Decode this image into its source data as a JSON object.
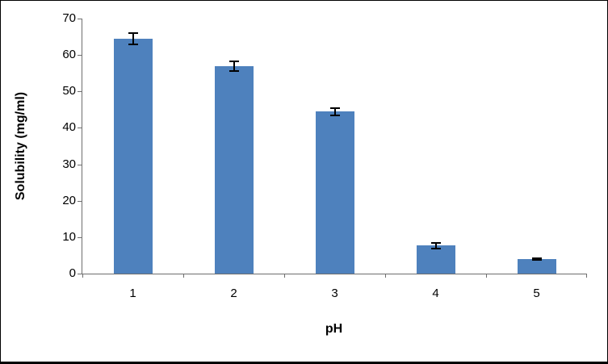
{
  "figure": {
    "background": "#ffffff",
    "border_color": "#000000"
  },
  "chart_data": {
    "type": "bar",
    "title": "",
    "xlabel": "pH",
    "ylabel": "Solubility (mg/ml)",
    "categories": [
      "1",
      "2",
      "3",
      "4",
      "5"
    ],
    "values": [
      64.5,
      57,
      44.5,
      7.7,
      4
    ],
    "errors": [
      1.5,
      1.3,
      1.0,
      0.8,
      0.3
    ],
    "ylim": [
      0,
      70
    ],
    "yticks": [
      0,
      10,
      20,
      30,
      40,
      50,
      60,
      70
    ],
    "bar_color": "#4e81bd",
    "error_color": "#000000",
    "axis_color": "#6e6e6e",
    "grid": false,
    "legend": "none"
  }
}
